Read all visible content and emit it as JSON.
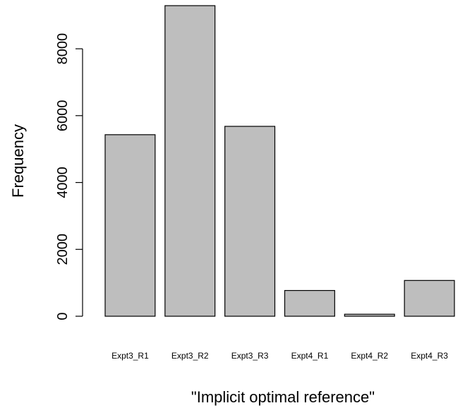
{
  "chart_data": {
    "type": "bar",
    "title": "",
    "xlabel": "\"Implicit optimal reference\"",
    "ylabel": "Frequency",
    "categories": [
      "Expt3_R1",
      "Expt3_R2",
      "Expt3_R3",
      "Expt4_R1",
      "Expt4_R2",
      "Expt4_R3"
    ],
    "values": [
      5430,
      9290,
      5680,
      770,
      60,
      1070
    ],
    "ylim": [
      0,
      9290
    ],
    "yticks": [
      0,
      2000,
      4000,
      6000,
      8000
    ],
    "ytick_labels": [
      "0",
      "2000",
      "4000",
      "6000",
      "8000"
    ],
    "grid": false,
    "legend": "none",
    "colors": {
      "bar_fill": "#bebebe",
      "bar_stroke": "#000000",
      "axis": "#000000",
      "background": "#ffffff"
    }
  }
}
